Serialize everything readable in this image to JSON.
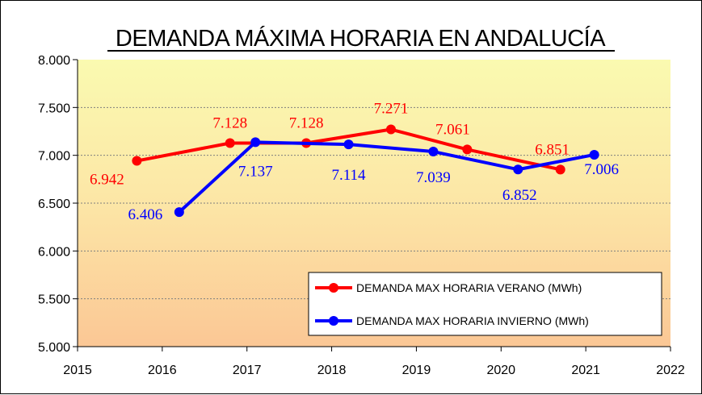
{
  "chart_data": {
    "type": "line",
    "title": "DEMANDA MÁXIMA HORARIA EN ANDALUCÍA",
    "xlabel": "",
    "ylabel": "",
    "xlim": [
      2015,
      2022
    ],
    "ylim": [
      5000,
      8000
    ],
    "x_ticks": [
      "2015",
      "2016",
      "2017",
      "2018",
      "2019",
      "2020",
      "2021",
      "2022"
    ],
    "y_ticks": [
      "5.000",
      "5.500",
      "6.000",
      "6.500",
      "7.000",
      "7.500",
      "8.000"
    ],
    "grid": true,
    "legend_position": "bottom-right",
    "series": [
      {
        "name": "DEMANDA MAX HORARIA VERANO (MWh)",
        "color": "#ff0000",
        "x": [
          2015.7,
          2016.8,
          2017.7,
          2018.7,
          2019.6,
          2020.7
        ],
        "values": [
          6942,
          7128,
          7128,
          7271,
          7061,
          6851
        ],
        "labels": [
          "6.942",
          "7.128",
          "7.128",
          "7.271",
          "7.061",
          "6.851"
        ]
      },
      {
        "name": "DEMANDA MAX HORARIA INVIERNO (MWh)",
        "color": "#0000ff",
        "x": [
          2016.2,
          2017.1,
          2018.2,
          2019.2,
          2020.2,
          2021.1
        ],
        "values": [
          6406,
          7137,
          7114,
          7039,
          6852,
          7006
        ],
        "labels": [
          "6.406",
          "7.137",
          "7.114",
          "7.039",
          "6.852",
          "7.006"
        ]
      }
    ]
  }
}
